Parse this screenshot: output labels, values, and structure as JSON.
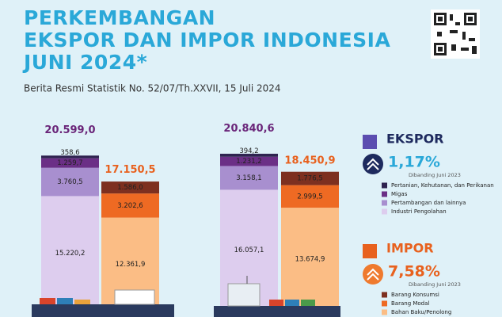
{
  "chart_data": {
    "type": "stacked_bar",
    "title": [
      "PERKEMBANGAN",
      "EKSPOR DAN IMPOR INDONESIA",
      "JUNI 2024*"
    ],
    "subtitle": "Berita Resmi Statistik No. 52/07/Th.XXVII, 15 Juli 2024",
    "categories": [
      null,
      null
    ],
    "totals": {
      "export": {
        "values": [
          20599.0,
          20840.6
        ],
        "value_labels": [
          "20.599,0",
          "20.840,6"
        ],
        "color": "#6a2579"
      },
      "import": {
        "values": [
          17150.5,
          18450.9
        ],
        "value_labels": [
          "17.150,5",
          "18.450,9"
        ],
        "color": "#e8611e"
      }
    },
    "series": [
      {
        "name": "Industri Pengolahan",
        "stack": "export",
        "color": "#ddcdee",
        "values": [
          15220.2,
          16057.1
        ],
        "value_labels": [
          "15.220,2",
          "16.057,1"
        ]
      },
      {
        "name": "Pertambangan dan lainnya",
        "stack": "export",
        "color": "#a88fcf",
        "values": [
          3760.5,
          3158.1
        ],
        "value_labels": [
          "3.760,5",
          "3.158,1"
        ]
      },
      {
        "name": "Migas",
        "stack": "export",
        "color": "#6b2f86",
        "values": [
          1259.7,
          1231.2
        ],
        "value_labels": [
          "1.259,7",
          "1.231,2"
        ]
      },
      {
        "name": "Pertanian, Kehutanan, dan Perikanan",
        "stack": "export",
        "color": "#2f2350",
        "values": [
          358.6,
          394.2
        ],
        "value_labels": [
          "358,6",
          "394,2"
        ]
      },
      {
        "name": "Bahan Baku/Penolong",
        "stack": "import",
        "color": "#fbbd85",
        "values": [
          12361.9,
          13674.9
        ],
        "value_labels": [
          "12.361,9",
          "13.674,9"
        ]
      },
      {
        "name": "Barang Modal",
        "stack": "import",
        "color": "#ee6a23",
        "values": [
          3202.6,
          2999.5
        ],
        "value_labels": [
          "3.202,6",
          "2.999,5"
        ]
      },
      {
        "name": "Barang Konsumsi",
        "stack": "import",
        "color": "#7d3020",
        "values": [
          1586.0,
          1776.5
        ],
        "value_labels": [
          "1.586,0",
          "1.776,5"
        ]
      }
    ],
    "panels": {
      "export": {
        "label": "EKSPOR",
        "change": "1,17%",
        "note": "Dibanding Juni 2023",
        "color": "#1e2a5e"
      },
      "import": {
        "label": "IMPOR",
        "change": "7,58%",
        "note": "Dibanding Juni 2023",
        "color": "#ef7a2e"
      }
    }
  }
}
